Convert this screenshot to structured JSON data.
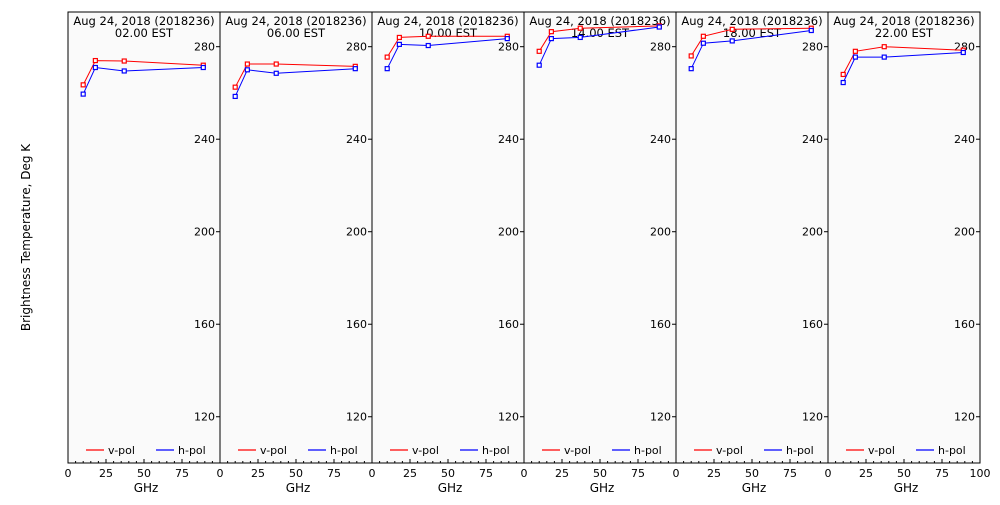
{
  "chart_data": {
    "type": "line",
    "ylabel": "Brightness Temperature, Deg K",
    "xlabel": "GHz",
    "ylim": [
      100,
      295
    ],
    "xlim": [
      0,
      100
    ],
    "yticks": [
      120,
      160,
      200,
      240,
      280
    ],
    "xticks": [
      0,
      25,
      50,
      75,
      100
    ],
    "series_colors": {
      "v-pol": "#ff0000",
      "h-pol": "#0000ff"
    },
    "legend_labels": [
      "v-pol",
      "h-pol"
    ],
    "panels": [
      {
        "title": "Aug 24, 2018 (2018236)",
        "subtitle": "02.00 EST",
        "series": [
          {
            "name": "v-pol",
            "x": [
              10,
              18,
              37,
              89
            ],
            "y": [
              263.5,
              274,
              273.8,
              272
            ]
          },
          {
            "name": "h-pol",
            "x": [
              10,
              18,
              37,
              89
            ],
            "y": [
              259.5,
              271,
              269.5,
              271
            ]
          }
        ]
      },
      {
        "title": "Aug 24, 2018 (2018236)",
        "subtitle": "06.00 EST",
        "series": [
          {
            "name": "v-pol",
            "x": [
              10,
              18,
              37,
              89
            ],
            "y": [
              262.5,
              272.5,
              272.5,
              271.5
            ]
          },
          {
            "name": "h-pol",
            "x": [
              10,
              18,
              37,
              89
            ],
            "y": [
              258.5,
              270,
              268.5,
              270.5
            ]
          }
        ]
      },
      {
        "title": "Aug 24, 2018 (2018236)",
        "subtitle": "10.00 EST",
        "series": [
          {
            "name": "v-pol",
            "x": [
              10,
              18,
              37,
              89
            ],
            "y": [
              275.5,
              284,
              284.5,
              284.5
            ]
          },
          {
            "name": "h-pol",
            "x": [
              10,
              18,
              37,
              89
            ],
            "y": [
              270.5,
              281,
              280.5,
              283.5
            ]
          }
        ]
      },
      {
        "title": "Aug 24, 2018 (2018236)",
        "subtitle": "14.00 EST",
        "series": [
          {
            "name": "v-pol",
            "x": [
              10,
              18,
              37,
              89
            ],
            "y": [
              278,
              286.5,
              288,
              289
            ]
          },
          {
            "name": "h-pol",
            "x": [
              10,
              18,
              37,
              89
            ],
            "y": [
              272,
              283.5,
              284,
              288.5
            ]
          }
        ]
      },
      {
        "title": "Aug 24, 2018 (2018236)",
        "subtitle": "18.00 EST",
        "series": [
          {
            "name": "v-pol",
            "x": [
              10,
              18,
              37,
              89
            ],
            "y": [
              276,
              284.5,
              287.5,
              288
            ]
          },
          {
            "name": "h-pol",
            "x": [
              10,
              18,
              37,
              89
            ],
            "y": [
              270.5,
              281.5,
              282.5,
              287
            ]
          }
        ]
      },
      {
        "title": "Aug 24, 2018 (2018236)",
        "subtitle": "22.00 EST",
        "series": [
          {
            "name": "v-pol",
            "x": [
              10,
              18,
              37,
              89
            ],
            "y": [
              268,
              278,
              280,
              278.5
            ]
          },
          {
            "name": "h-pol",
            "x": [
              10,
              18,
              37,
              89
            ],
            "y": [
              264.5,
              275.5,
              275.5,
              277.5
            ]
          }
        ]
      }
    ]
  }
}
